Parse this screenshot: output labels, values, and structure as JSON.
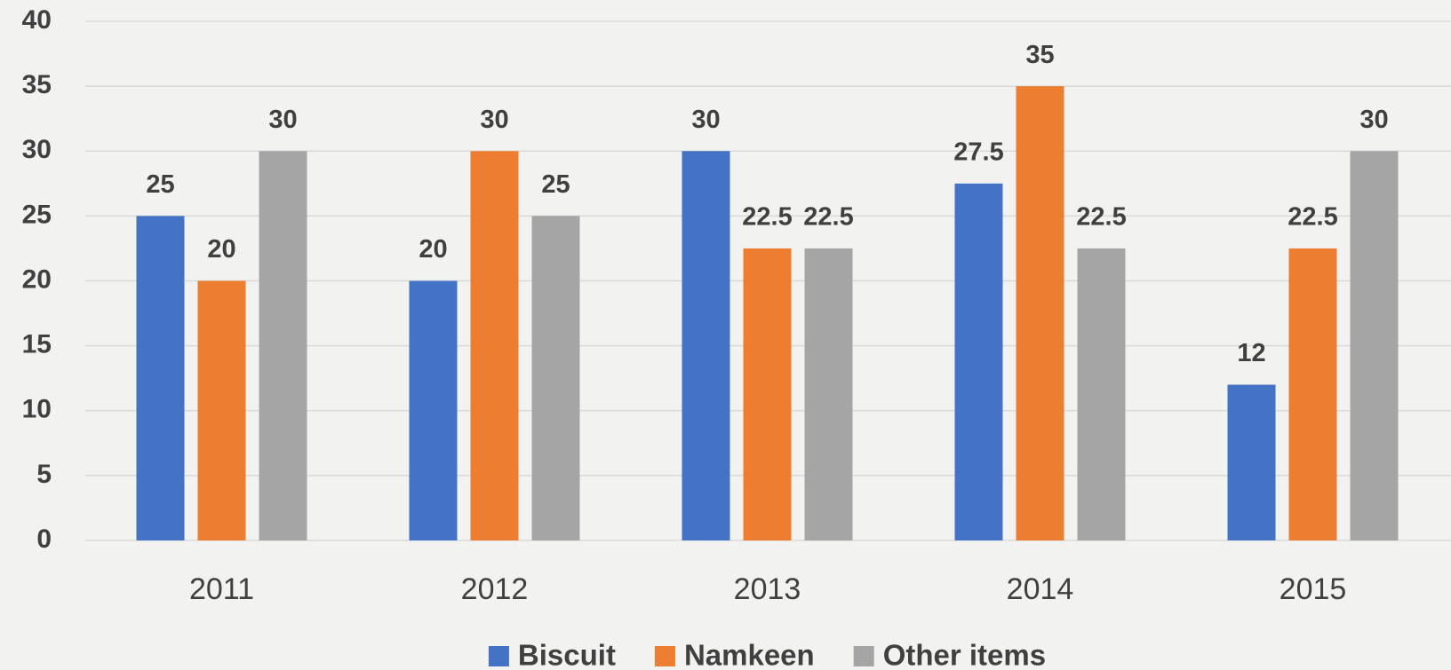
{
  "chart_data": {
    "type": "bar",
    "categories": [
      "2011",
      "2012",
      "2013",
      "2014",
      "2015"
    ],
    "series": [
      {
        "name": "Biscuit",
        "color": "#4472c4",
        "values": [
          25,
          20,
          30,
          27.5,
          12
        ]
      },
      {
        "name": "Namkeen",
        "color": "#ed7d31",
        "values": [
          20,
          30,
          22.5,
          35,
          22.5
        ]
      },
      {
        "name": "Other items",
        "color": "#a5a5a5",
        "values": [
          30,
          25,
          22.5,
          22.5,
          30
        ]
      }
    ],
    "ylim": [
      0,
      40
    ],
    "yticks": [
      0,
      5,
      10,
      15,
      20,
      25,
      30,
      35,
      40
    ],
    "grid": true,
    "legend": "bottom"
  }
}
